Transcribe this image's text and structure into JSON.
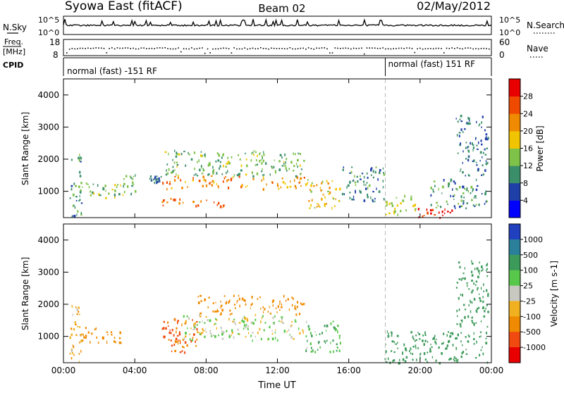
{
  "header": {
    "station": "Syowa East (fitACF)",
    "beam": "Beam 02",
    "date": "02/May/2012"
  },
  "summary_panels": {
    "nsky": {
      "left_label": "N.Sky",
      "right_label": "N.Search",
      "left_ticks": [
        "10^5",
        "10^0"
      ],
      "right_ticks": [
        "10^5",
        "10^0"
      ]
    },
    "freq": {
      "left_label_line1": "Freq.",
      "left_label_line2": "[MHz]",
      "right_label": "Nave",
      "left_ticks": [
        "18",
        "8"
      ],
      "right_ticks": [
        "60",
        "0"
      ]
    },
    "cpid": {
      "label": "CPID",
      "segment_1": "normal (fast) -151 RF",
      "segment_2": "normal (fast) 151 RF"
    }
  },
  "chart_data": [
    {
      "type": "heatmap",
      "name": "power",
      "ylabel": "Slant Range [km]",
      "xlabel": "",
      "x_ticks": [
        "00:00",
        "04:00",
        "08:00",
        "12:00",
        "16:00",
        "20:00",
        "00:00"
      ],
      "y_ticks": [
        1000,
        2000,
        3000,
        4000
      ],
      "xlim": [
        0,
        24
      ],
      "ylim": [
        180,
        4500
      ],
      "colorbar": {
        "label": "Power [dB]",
        "ticks": [
          "4",
          "8",
          "12",
          "16",
          "20",
          "24",
          "28"
        ],
        "colors": [
          "#0000ff",
          "#1f3fa8",
          "#3a8f6a",
          "#7fc24a",
          "#f0c400",
          "#f08a00",
          "#f04a00",
          "#e80000"
        ]
      },
      "cpid_change_hour": 18.05,
      "echo_regions": [
        {
          "t0": 0.3,
          "t1": 1.0,
          "r0": 200,
          "r1": 2200,
          "value": 10
        },
        {
          "t0": 0.8,
          "t1": 3.2,
          "r0": 800,
          "r1": 1300,
          "value": 14
        },
        {
          "t0": 3.3,
          "t1": 4.0,
          "r0": 900,
          "r1": 1700,
          "value": 13
        },
        {
          "t0": 4.8,
          "t1": 5.5,
          "r0": 1300,
          "r1": 1500,
          "value": 8
        },
        {
          "t0": 5.5,
          "t1": 13.5,
          "r0": 1100,
          "r1": 1500,
          "value": 22
        },
        {
          "t0": 5.5,
          "t1": 13.5,
          "r0": 1500,
          "r1": 2300,
          "value": 13
        },
        {
          "t0": 5.5,
          "t1": 9.0,
          "r0": 550,
          "r1": 800,
          "value": 24
        },
        {
          "t0": 13.5,
          "t1": 15.5,
          "r0": 500,
          "r1": 1400,
          "value": 18
        },
        {
          "t0": 15.5,
          "t1": 18.0,
          "r0": 700,
          "r1": 1800,
          "value": 9
        },
        {
          "t0": 18.0,
          "t1": 19.8,
          "r0": 300,
          "r1": 900,
          "value": 16
        },
        {
          "t0": 19.8,
          "t1": 21.8,
          "r0": 200,
          "r1": 500,
          "value": 28
        },
        {
          "t0": 20.5,
          "t1": 23.8,
          "r0": 500,
          "r1": 1400,
          "value": 10
        },
        {
          "t0": 22.0,
          "t1": 23.8,
          "r0": 1500,
          "r1": 3400,
          "value": 8
        }
      ]
    },
    {
      "type": "heatmap",
      "name": "velocity",
      "ylabel": "Slant Range [km]",
      "xlabel": "Time UT",
      "x_ticks": [
        "00:00",
        "04:00",
        "08:00",
        "12:00",
        "16:00",
        "20:00",
        "00:00"
      ],
      "y_ticks": [
        1000,
        2000,
        3000,
        4000
      ],
      "xlim": [
        0,
        24
      ],
      "ylim": [
        180,
        4500
      ],
      "colorbar": {
        "label": "Velocity [m s-1]",
        "ticks": [
          "1000",
          "500",
          "100",
          "25",
          "-25",
          "-100",
          "-500",
          "-1000"
        ],
        "colors": [
          "#2040c0",
          "#2a7f9a",
          "#3c9a5a",
          "#58c84a",
          "#c8c8c0",
          "#f0b020",
          "#f08a00",
          "#f04a10",
          "#e80000"
        ]
      },
      "cpid_change_hour": 18.05,
      "echo_regions": [
        {
          "t0": 0.8,
          "t1": 3.2,
          "r0": 800,
          "r1": 1300,
          "value": -300
        },
        {
          "t0": 0.3,
          "t1": 1.0,
          "r0": 200,
          "r1": 2000,
          "value": -100
        },
        {
          "t0": 5.5,
          "t1": 7.5,
          "r0": 500,
          "r1": 1600,
          "value": -500
        },
        {
          "t0": 6.5,
          "t1": 13.5,
          "r0": 900,
          "r1": 1700,
          "value": 0
        },
        {
          "t0": 7.5,
          "t1": 13.5,
          "r0": 1700,
          "r1": 2300,
          "value": -300
        },
        {
          "t0": 13.5,
          "t1": 15.5,
          "r0": 500,
          "r1": 1500,
          "value": 100
        },
        {
          "t0": 18.0,
          "t1": 23.8,
          "r0": 200,
          "r1": 1200,
          "value": 300
        },
        {
          "t0": 22.0,
          "t1": 23.8,
          "r0": 1300,
          "r1": 3400,
          "value": 200
        }
      ]
    }
  ]
}
